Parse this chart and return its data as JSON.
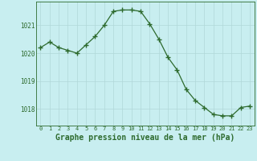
{
  "x": [
    0,
    1,
    2,
    3,
    4,
    5,
    6,
    7,
    8,
    9,
    10,
    11,
    12,
    13,
    14,
    15,
    16,
    17,
    18,
    19,
    20,
    21,
    22,
    23
  ],
  "y": [
    1020.2,
    1020.4,
    1020.2,
    1020.1,
    1020.0,
    1020.3,
    1020.6,
    1021.0,
    1021.5,
    1021.55,
    1021.55,
    1021.5,
    1021.05,
    1020.5,
    1019.85,
    1019.4,
    1018.7,
    1018.3,
    1018.05,
    1017.8,
    1017.75,
    1017.75,
    1018.05,
    1018.1
  ],
  "line_color": "#2d6a2d",
  "marker": "+",
  "marker_size": 4.0,
  "marker_lw": 1.0,
  "bg_color": "#c8eef0",
  "grid_color": "#b0d8d8",
  "axes_color": "#2d6a2d",
  "label_color": "#2d6a2d",
  "xlabel": "Graphe pression niveau de la mer (hPa)",
  "xlabel_fontsize": 7,
  "ytick_labels": [
    "1018",
    "1019",
    "1020",
    "1021"
  ],
  "ytick_vals": [
    1018,
    1019,
    1020,
    1021
  ],
  "ylim": [
    1017.4,
    1021.85
  ],
  "xlim": [
    -0.5,
    23.5
  ],
  "xtick_fontsize": 5,
  "ytick_fontsize": 5.5,
  "linewidth": 0.9
}
